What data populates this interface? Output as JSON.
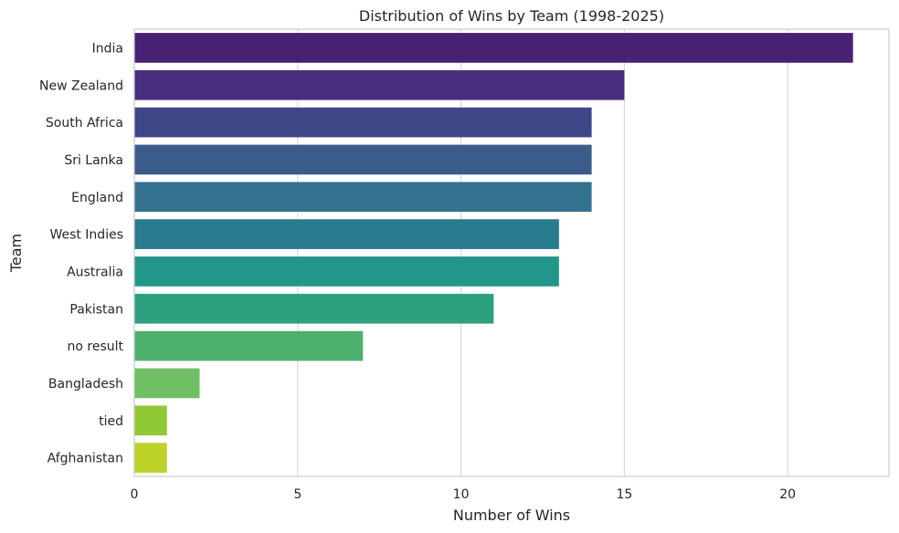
{
  "chart_data": {
    "type": "bar",
    "orientation": "horizontal",
    "title": "Distribution of Wins by Team (1998-2025)",
    "xlabel": "Number of Wins",
    "ylabel": "Team",
    "xlim": [
      0,
      23.1
    ],
    "xticks": [
      0,
      5,
      10,
      15,
      20
    ],
    "grid": true,
    "categories": [
      "India",
      "New Zealand",
      "South Africa",
      "Sri Lanka",
      "England",
      "West Indies",
      "Australia",
      "Pakistan",
      "no result",
      "Bangladesh",
      "tied",
      "Afghanistan"
    ],
    "values": [
      22,
      15,
      14,
      14,
      14,
      13,
      13,
      11,
      7,
      2,
      1,
      1
    ],
    "colors": [
      "#482173",
      "#472f7d",
      "#3f4788",
      "#3b5c8b",
      "#33728e",
      "#297b8e",
      "#22968b",
      "#2da07f",
      "#4eb06e",
      "#71bf64",
      "#90c836",
      "#bdd12b"
    ]
  }
}
